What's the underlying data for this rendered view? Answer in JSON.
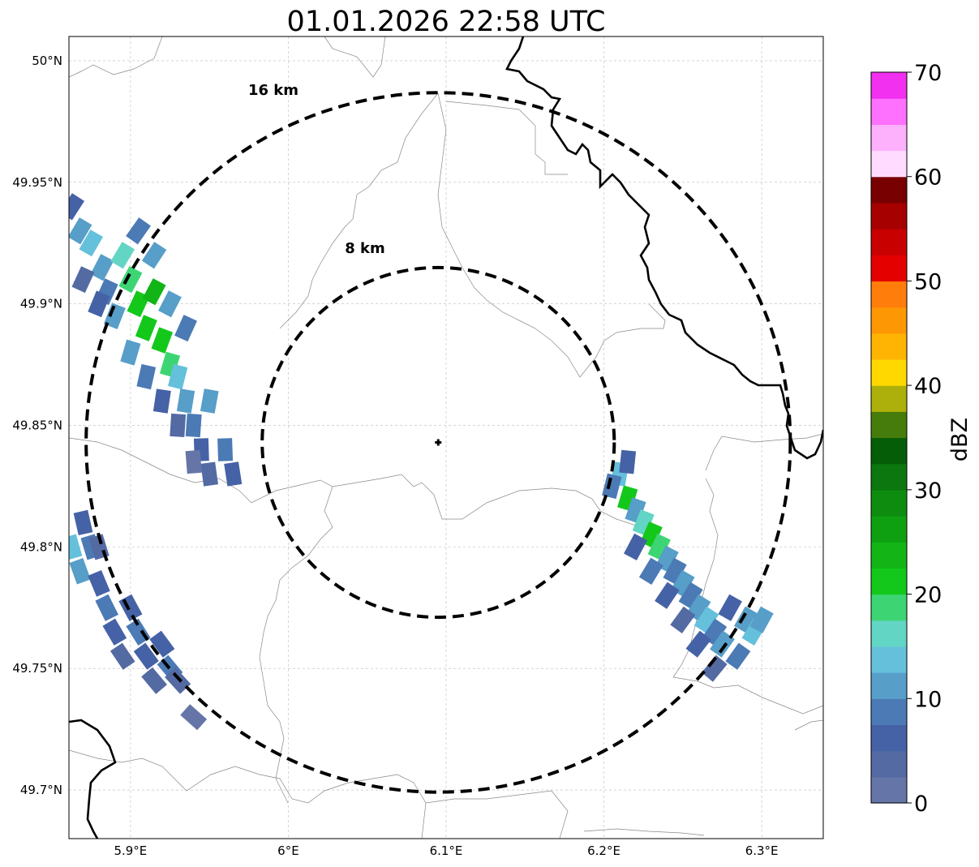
{
  "title": "01.01.2026 22:58 UTC",
  "map": {
    "lon_range": [
      5.861,
      6.339
    ],
    "lat_range": [
      49.68,
      50.01
    ],
    "x_ticks": [
      {
        "value": 5.9,
        "label": "5.9°E"
      },
      {
        "value": 6.0,
        "label": "6°E"
      },
      {
        "value": 6.1,
        "label": "6.1°E"
      },
      {
        "value": 6.2,
        "label": "6.2°E"
      },
      {
        "value": 6.3,
        "label": "6.3°E"
      }
    ],
    "y_ticks": [
      {
        "value": 49.7,
        "label": "49.7°N"
      },
      {
        "value": 49.75,
        "label": "49.75°N"
      },
      {
        "value": 49.8,
        "label": "49.8°N"
      },
      {
        "value": 49.85,
        "label": "49.85°N"
      },
      {
        "value": 49.9,
        "label": "49.9°N"
      },
      {
        "value": 49.95,
        "label": "49.95°N"
      },
      {
        "value": 50.0,
        "label": "50°N"
      }
    ],
    "radar_site": {
      "lon": 6.095,
      "lat": 49.843
    },
    "range_rings": [
      {
        "label": "8 km",
        "radius_km": 8
      },
      {
        "label": "16 km",
        "radius_km": 16
      }
    ],
    "echoes": [
      {
        "name": "northwest-band",
        "points": [
          [
            5.863,
            49.94,
            6
          ],
          [
            5.868,
            49.93,
            10
          ],
          [
            5.875,
            49.925,
            14
          ],
          [
            5.882,
            49.915,
            12
          ],
          [
            5.885,
            49.905,
            8
          ],
          [
            5.895,
            49.92,
            16
          ],
          [
            5.9,
            49.91,
            18
          ],
          [
            5.905,
            49.9,
            22
          ],
          [
            5.91,
            49.89,
            20
          ],
          [
            5.915,
            49.905,
            24
          ],
          [
            5.92,
            49.885,
            22
          ],
          [
            5.925,
            49.875,
            18
          ],
          [
            5.93,
            49.87,
            14
          ],
          [
            5.935,
            49.86,
            10
          ],
          [
            5.94,
            49.85,
            8
          ],
          [
            5.945,
            49.84,
            6
          ],
          [
            5.95,
            49.83,
            4
          ],
          [
            5.96,
            49.84,
            8
          ],
          [
            5.965,
            49.83,
            6
          ],
          [
            5.87,
            49.91,
            4
          ],
          [
            5.88,
            49.9,
            6
          ],
          [
            5.89,
            49.895,
            10
          ],
          [
            5.9,
            49.88,
            12
          ],
          [
            5.91,
            49.87,
            8
          ],
          [
            5.92,
            49.86,
            6
          ],
          [
            5.93,
            49.85,
            4
          ],
          [
            5.94,
            49.835,
            2
          ],
          [
            5.95,
            49.86,
            12
          ],
          [
            5.905,
            49.93,
            8
          ],
          [
            5.915,
            49.92,
            10
          ],
          [
            5.925,
            49.9,
            12
          ],
          [
            5.935,
            49.89,
            8
          ]
        ]
      },
      {
        "name": "southwest-band",
        "points": [
          [
            5.863,
            49.8,
            14
          ],
          [
            5.868,
            49.79,
            10
          ],
          [
            5.875,
            49.8,
            8
          ],
          [
            5.88,
            49.785,
            6
          ],
          [
            5.885,
            49.775,
            8
          ],
          [
            5.89,
            49.765,
            6
          ],
          [
            5.895,
            49.755,
            4
          ],
          [
            5.9,
            49.775,
            6
          ],
          [
            5.905,
            49.765,
            8
          ],
          [
            5.91,
            49.755,
            6
          ],
          [
            5.915,
            49.745,
            4
          ],
          [
            5.92,
            49.76,
            6
          ],
          [
            5.925,
            49.75,
            8
          ],
          [
            5.93,
            49.745,
            4
          ],
          [
            5.87,
            49.81,
            6
          ],
          [
            5.88,
            49.8,
            4
          ],
          [
            5.94,
            49.73,
            2
          ]
        ]
      },
      {
        "name": "east-band",
        "points": [
          [
            6.21,
            49.83,
            14
          ],
          [
            6.215,
            49.82,
            20
          ],
          [
            6.22,
            49.815,
            12
          ],
          [
            6.225,
            49.81,
            16
          ],
          [
            6.23,
            49.805,
            22
          ],
          [
            6.235,
            49.8,
            18
          ],
          [
            6.24,
            49.795,
            12
          ],
          [
            6.245,
            49.79,
            8
          ],
          [
            6.25,
            49.785,
            10
          ],
          [
            6.255,
            49.78,
            8
          ],
          [
            6.26,
            49.775,
            12
          ],
          [
            6.265,
            49.77,
            14
          ],
          [
            6.27,
            49.765,
            8
          ],
          [
            6.275,
            49.76,
            10
          ],
          [
            6.28,
            49.775,
            6
          ],
          [
            6.285,
            49.755,
            8
          ],
          [
            6.29,
            49.77,
            12
          ],
          [
            6.295,
            49.765,
            14
          ],
          [
            6.3,
            49.77,
            10
          ],
          [
            6.22,
            49.8,
            6
          ],
          [
            6.23,
            49.79,
            8
          ],
          [
            6.24,
            49.78,
            6
          ],
          [
            6.25,
            49.77,
            4
          ],
          [
            6.26,
            49.76,
            6
          ],
          [
            6.27,
            49.75,
            4
          ],
          [
            6.205,
            49.825,
            8
          ],
          [
            6.215,
            49.835,
            6
          ]
        ]
      }
    ]
  },
  "colorbar": {
    "label": "dBZ",
    "ticks": [
      0,
      10,
      20,
      30,
      40,
      50,
      60,
      70
    ],
    "colors": [
      "#6575a8",
      "#546aa3",
      "#4662a6",
      "#4b7ab5",
      "#579ec8",
      "#65c0dc",
      "#63d5c4",
      "#3dd574",
      "#13c81b",
      "#12b416",
      "#0fa012",
      "#0e8c10",
      "#0b770e",
      "#055d07",
      "#457c0b",
      "#adb00b",
      "#ffd800",
      "#ffb404",
      "#fe9704",
      "#ff7d0a",
      "#e50000",
      "#c80000",
      "#a60000",
      "#790000",
      "#ffdcff",
      "#fdb1fd",
      "#fe70fe",
      "#f230f0"
    ]
  }
}
